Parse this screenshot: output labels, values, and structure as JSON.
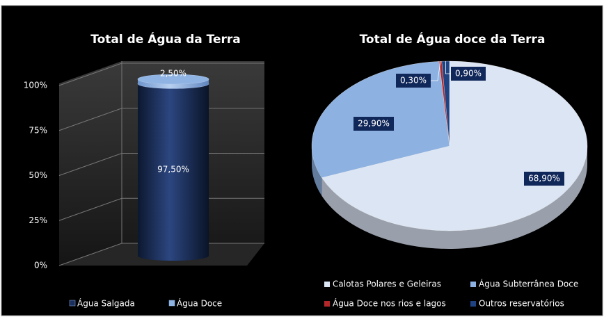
{
  "chart_data": [
    {
      "type": "bar",
      "title": "Total de Água da Terra",
      "stacked": true,
      "categories": [
        null
      ],
      "series": [
        {
          "name": "Água Salgada",
          "color": "#1b2f5e",
          "values": [
            97.5
          ],
          "value_labels": [
            "97,50%"
          ]
        },
        {
          "name": "Água Doce",
          "color": "#8fb4e3",
          "values": [
            2.5
          ],
          "value_labels": [
            "2,50%"
          ]
        }
      ],
      "ylim": [
        0,
        100
      ],
      "yticks": [
        {
          "value": 0,
          "label": "0%"
        },
        {
          "value": 25,
          "label": "25%"
        },
        {
          "value": 50,
          "label": "50%"
        },
        {
          "value": 75,
          "label": "75%"
        },
        {
          "value": 100,
          "label": "100%"
        }
      ],
      "grid": true,
      "legend": "bottom"
    },
    {
      "type": "pie",
      "title": "Total de Água doce da Terra",
      "categories": [
        "Calotas Polares e Geleiras",
        "Água Subterrânea Doce",
        "Água Doce nos rios e lagos",
        "Outros reservatórios"
      ],
      "values": [
        68.9,
        29.9,
        0.3,
        0.9
      ],
      "value_labels": [
        "68,90%",
        "29,90%",
        "0,30%",
        "0,90%"
      ],
      "colors": [
        "#dce5f4",
        "#8db1e1",
        "#b3262a",
        "#1f4283"
      ],
      "legend": "bottom"
    }
  ]
}
